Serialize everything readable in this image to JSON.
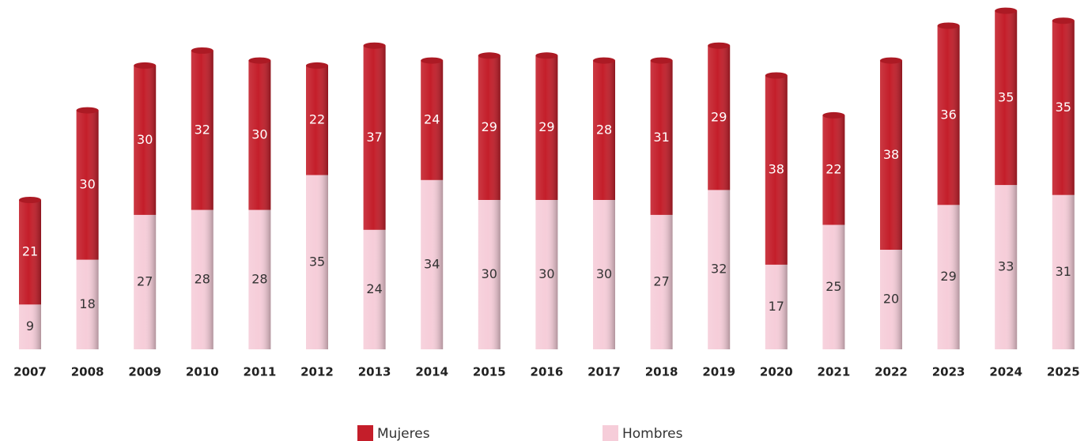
{
  "chart_data": {
    "type": "bar",
    "stacked": true,
    "categories": [
      "2007",
      "2008",
      "2009",
      "2010",
      "2011",
      "2012",
      "2013",
      "2014",
      "2015",
      "2016",
      "2017",
      "2018",
      "2019",
      "2020",
      "2021",
      "2022",
      "2023",
      "2024",
      "2025"
    ],
    "series": [
      {
        "name": "Mujeres",
        "color": "#c41e2a",
        "values": [
          21,
          30,
          30,
          32,
          30,
          22,
          37,
          24,
          29,
          29,
          28,
          31,
          29,
          38,
          22,
          38,
          36,
          35,
          35
        ]
      },
      {
        "name": "Hombres",
        "color": "#f6cdd9",
        "values": [
          9,
          18,
          27,
          28,
          28,
          35,
          24,
          34,
          30,
          30,
          30,
          27,
          32,
          17,
          25,
          20,
          29,
          33,
          31
        ]
      }
    ]
  }
}
